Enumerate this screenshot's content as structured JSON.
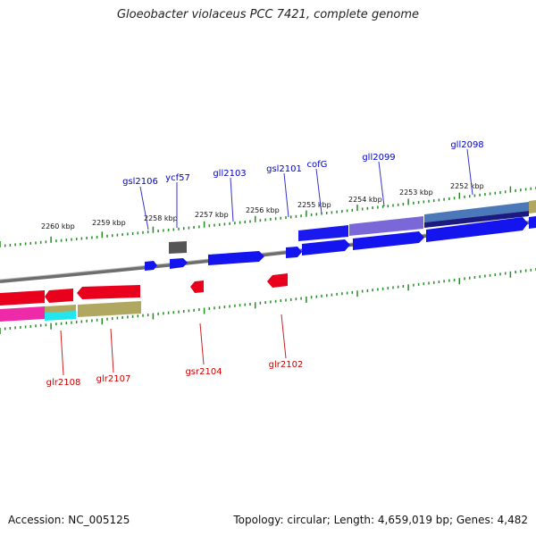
{
  "title": "Gloeobacter violaceus PCC 7421, complete genome",
  "footer": {
    "accession": "Accession: NC_005125",
    "summary": "Topology: circular; Length: 4,659,019 bp; Genes: 4,482"
  },
  "colors": {
    "forward_label": "#0000cc",
    "reverse_label": "#cc0000",
    "backbone": "#808080",
    "tick": "#228b22"
  },
  "scale_labels": [
    "2260 kbp",
    "2259 kbp",
    "2258 kbp",
    "2257 kbp",
    "2256 kbp",
    "2255 kbp",
    "2254 kbp",
    "2253 kbp",
    "2252 kbp"
  ],
  "forward_genes": [
    "gsl2106",
    "ycf57",
    "gll2103",
    "gsl2101",
    "cofG",
    "gll2099",
    "gll2098"
  ],
  "reverse_genes": [
    "glr2108",
    "glr2107",
    "gsr2104",
    "glr2102"
  ]
}
